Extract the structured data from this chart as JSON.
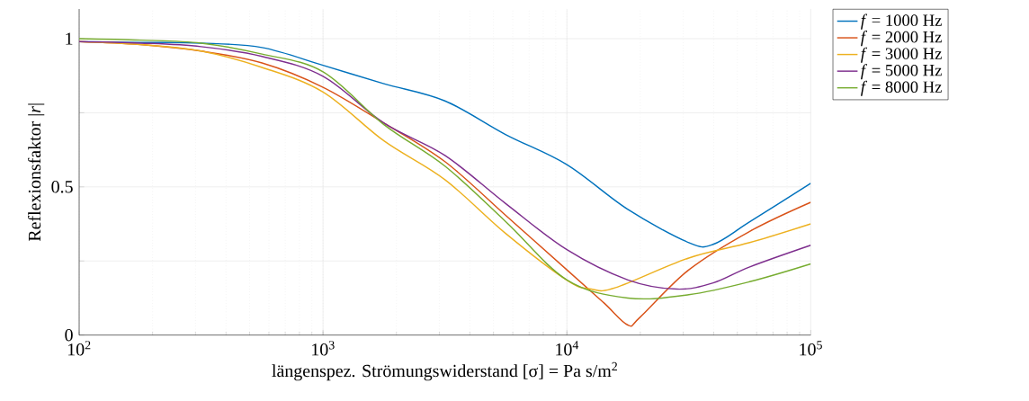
{
  "chart_data": {
    "type": "line",
    "xlabel": "längenspez. Strömungswiderstand [σ] = Pa s/m$^{2}$",
    "ylabel": "Reflexionsfaktor |*r*|",
    "log": "x",
    "grid": true,
    "legend": "right",
    "line_style": "solid",
    "marker": "none",
    "xlim": [
      100,
      100000
    ],
    "ylim": [
      0,
      1.1
    ],
    "xticks": [
      {
        "value": 100,
        "label": "10$^{2}$"
      },
      {
        "value": 1000,
        "label": "10$^{3}$"
      },
      {
        "value": 10000,
        "label": "10$^{4}$"
      },
      {
        "value": 100000,
        "label": "10$^{5}$"
      }
    ],
    "yticks": [
      0,
      {
        "value": 0.25,
        "label": null
      },
      0.5,
      {
        "value": 0.75,
        "label": null
      },
      1
    ],
    "series": [
      {
        "name": "*f* = 1000 Hz",
        "color": "#0072bd",
        "x": [
          100,
          178,
          316,
          562,
          1000,
          1778,
          3162,
          5623,
          10000,
          17783,
          31623,
          39811,
          56234,
          100000
        ],
        "values": [
          0.99,
          0.987,
          0.985,
          0.97,
          0.91,
          0.848,
          0.79,
          0.676,
          0.575,
          0.424,
          0.312,
          0.306,
          0.382,
          0.512
        ]
      },
      {
        "name": "*f* = 2000 Hz",
        "color": "#d95319",
        "x": [
          100,
          178,
          316,
          562,
          1000,
          1778,
          3162,
          5623,
          10000,
          14125,
          17783,
          19953,
          31623,
          56234,
          100000
        ],
        "values": [
          0.99,
          0.98,
          0.958,
          0.918,
          0.836,
          0.715,
          0.585,
          0.403,
          0.22,
          0.11,
          0.034,
          0.06,
          0.22,
          0.35,
          0.448
        ]
      },
      {
        "name": "*f* = 3000 Hz",
        "color": "#edb120",
        "x": [
          100,
          178,
          316,
          562,
          1000,
          1778,
          3162,
          5623,
          10000,
          12589,
          15849,
          31623,
          56234,
          100000
        ],
        "values": [
          0.99,
          0.98,
          0.958,
          0.903,
          0.82,
          0.655,
          0.524,
          0.342,
          0.185,
          0.155,
          0.16,
          0.26,
          0.312,
          0.375
        ]
      },
      {
        "name": "*f* = 5000 Hz",
        "color": "#7e2f8e",
        "x": [
          100,
          178,
          316,
          562,
          1000,
          1778,
          3162,
          5623,
          10000,
          17783,
          28184,
          39811,
          56234,
          100000
        ],
        "values": [
          0.99,
          0.985,
          0.973,
          0.94,
          0.873,
          0.715,
          0.606,
          0.443,
          0.288,
          0.186,
          0.155,
          0.176,
          0.23,
          0.303
        ]
      },
      {
        "name": "*f* = 8000 Hz",
        "color": "#77ac30",
        "x": [
          100,
          178,
          316,
          562,
          1000,
          1778,
          3162,
          5623,
          10000,
          17783,
          31623,
          56234,
          100000
        ],
        "values": [
          1.0,
          0.995,
          0.985,
          0.948,
          0.888,
          0.71,
          0.57,
          0.382,
          0.186,
          0.125,
          0.136,
          0.18,
          0.24
        ]
      }
    ]
  }
}
